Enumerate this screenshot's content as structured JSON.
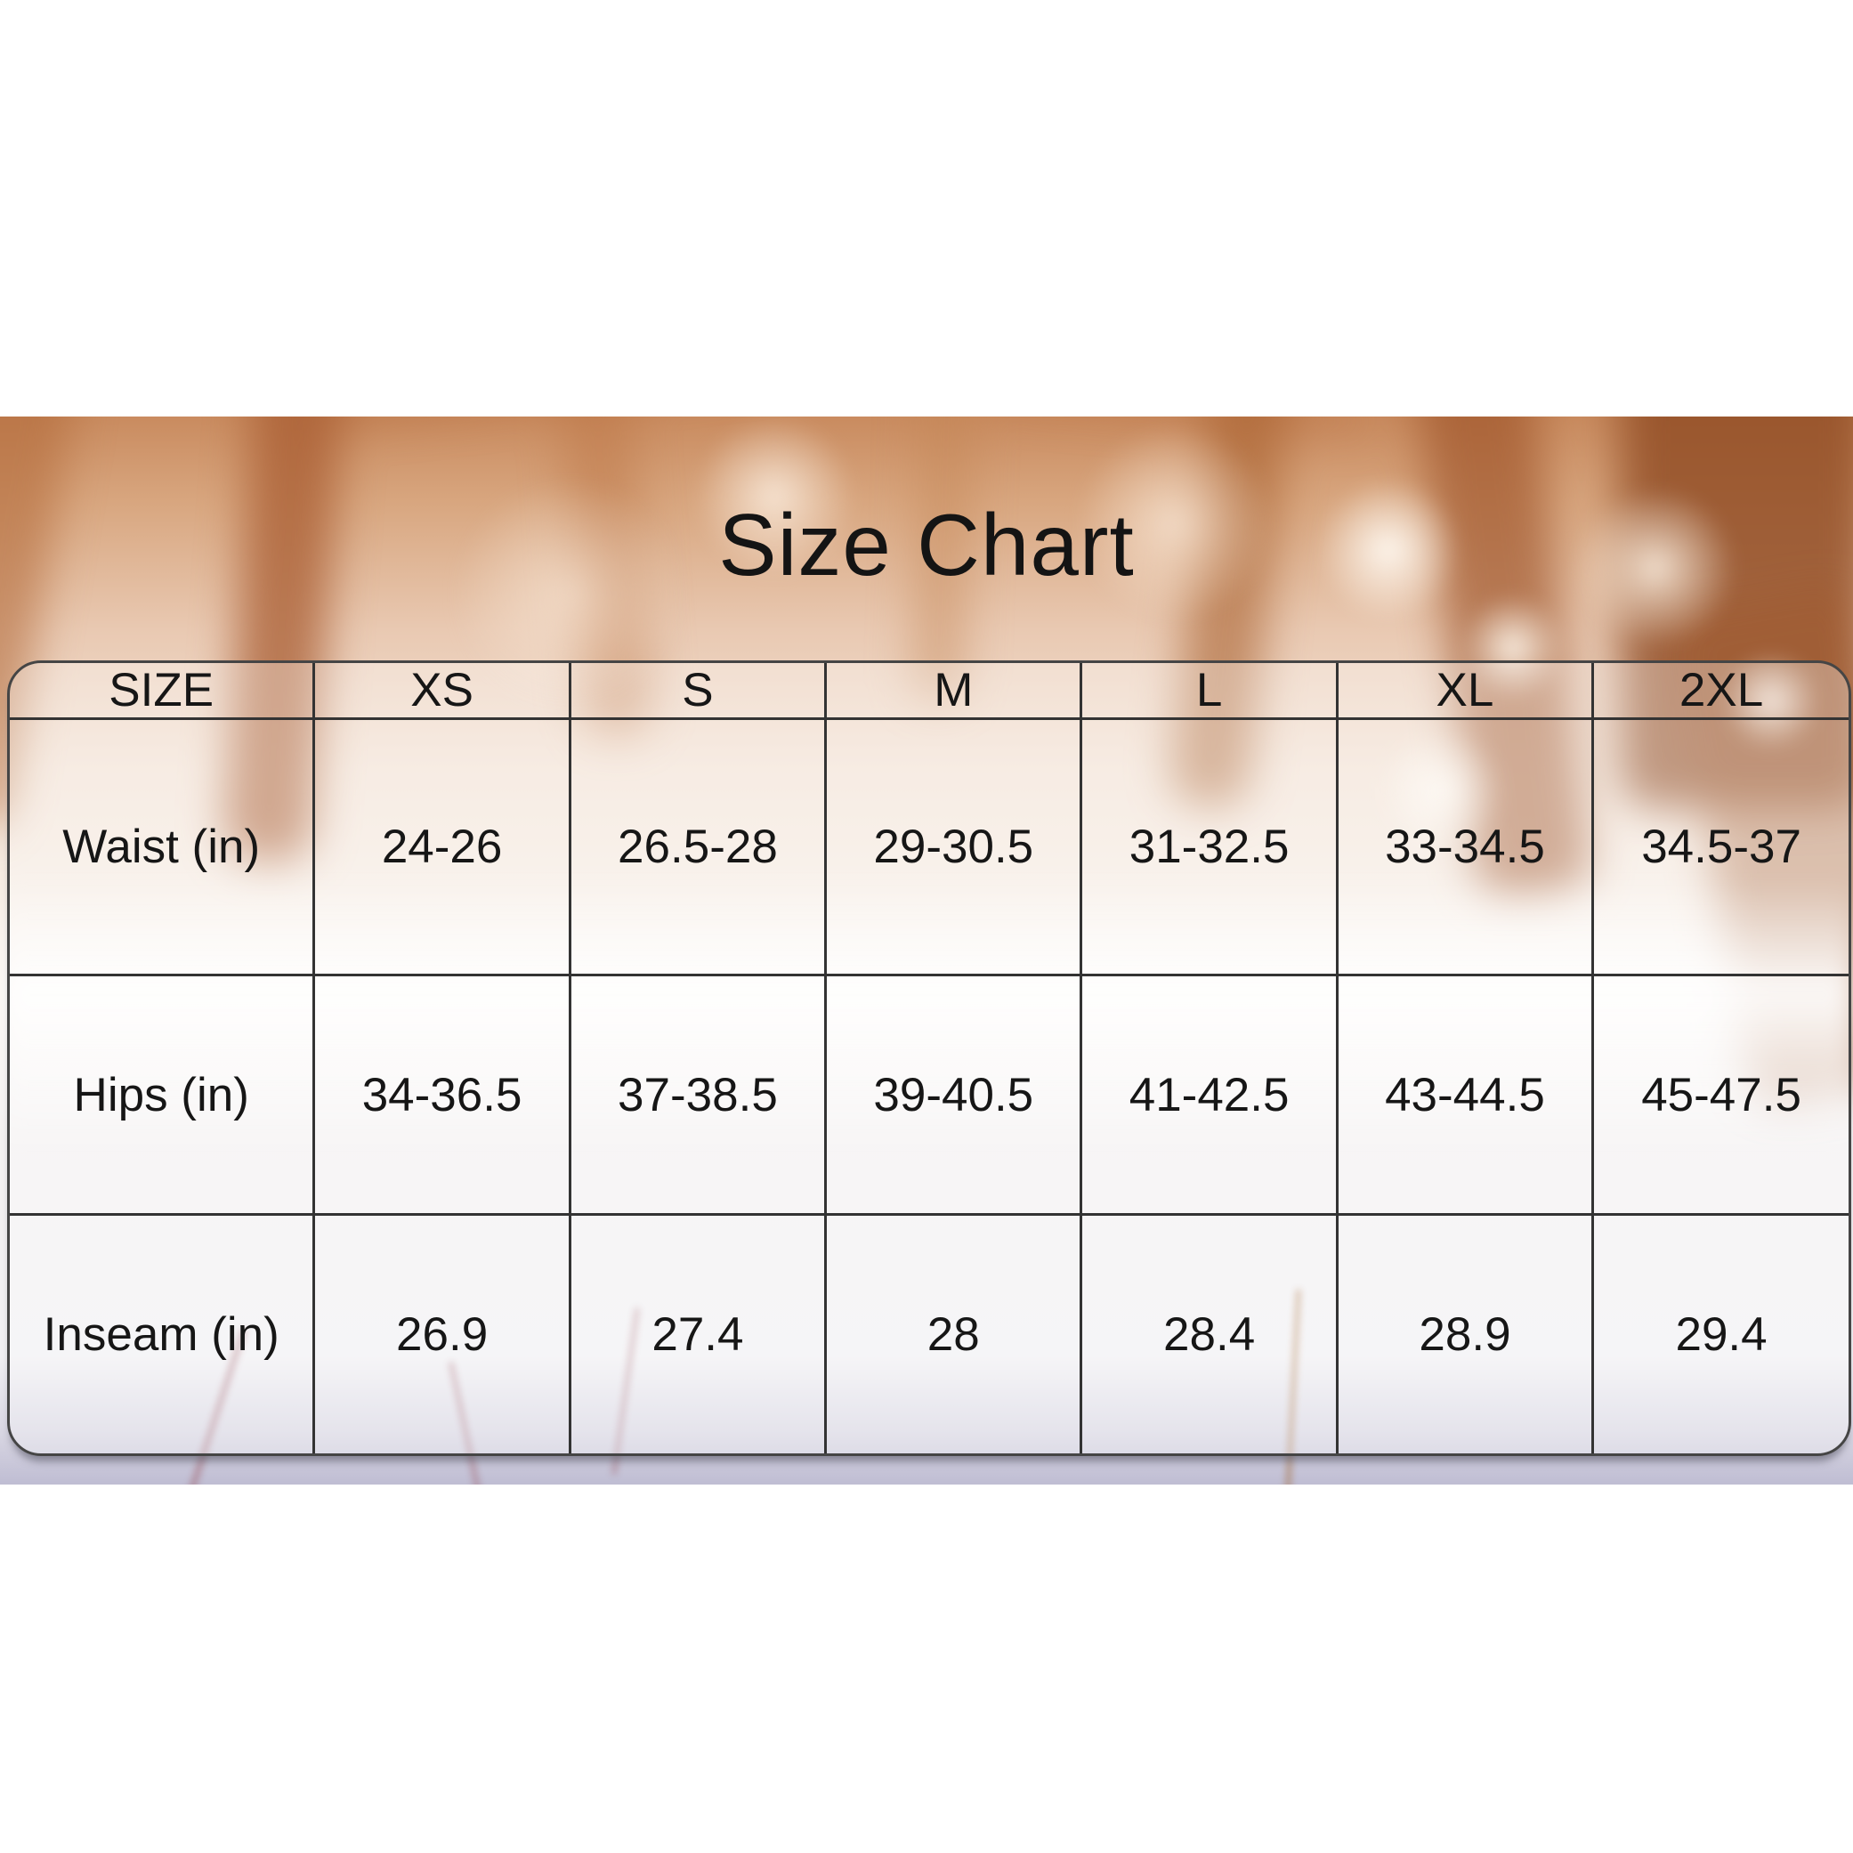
{
  "chart_data": {
    "type": "table",
    "title": "Size Chart",
    "columns": [
      "SIZE",
      "XS",
      "S",
      "M",
      "L",
      "XL",
      "2XL"
    ],
    "rows": [
      {
        "label": "Waist (in)",
        "values": [
          "24-26",
          "26.5-28",
          "29-30.5",
          "31-32.5",
          "33-34.5",
          "34.5-37"
        ]
      },
      {
        "label": "Hips (in)",
        "values": [
          "34-36.5",
          "37-38.5",
          "39-40.5",
          "41-42.5",
          "43-44.5",
          "45-47.5"
        ]
      },
      {
        "label": "Inseam (in)",
        "values": [
          "26.9",
          "27.4",
          "28",
          "28.4",
          "28.9",
          "29.4"
        ]
      }
    ],
    "layout_hints": {
      "grid": true,
      "rounded_frame": true,
      "background": "blurred winter landscape photo"
    }
  },
  "colors": {
    "text": "#161616",
    "grid_line": "#333333",
    "frame_border": "#454545",
    "photo_warm": "#c98b5f",
    "photo_snow": "#f2f0f2",
    "photo_lavender": "#bfbdd3"
  }
}
